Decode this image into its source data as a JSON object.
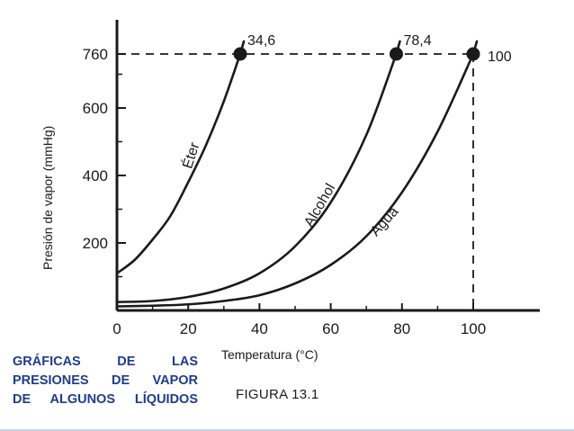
{
  "chart_data": {
    "type": "line",
    "ylabel": "Presión de vapor (mmHg)",
    "xlabel": "Temperatura (°C)",
    "figure_label": "FIGURA 13.1",
    "xlim": [
      0,
      110
    ],
    "ylim": [
      0,
      800
    ],
    "x_ticks": [
      0,
      20,
      40,
      60,
      80,
      100
    ],
    "y_ticks": [
      200,
      400,
      600,
      760
    ],
    "reference_pressure": 760,
    "series": [
      {
        "name": "Éter",
        "boiling_point": 34.6,
        "boiling_label": "34,6",
        "x": [
          0,
          5,
          10,
          15,
          20,
          25,
          30,
          34.6
        ],
        "y": [
          110,
          150,
          210,
          280,
          380,
          490,
          620,
          760
        ]
      },
      {
        "name": "Alcohol",
        "boiling_point": 78.4,
        "boiling_label": "78,4",
        "x": [
          0,
          10,
          20,
          30,
          40,
          50,
          60,
          70,
          78.4
        ],
        "y": [
          25,
          28,
          40,
          65,
          110,
          190,
          320,
          520,
          760
        ]
      },
      {
        "name": "Agua",
        "boiling_point": 100,
        "boiling_label": "100",
        "x": [
          0,
          10,
          20,
          30,
          40,
          50,
          60,
          70,
          80,
          90,
          100
        ],
        "y": [
          12,
          14,
          18,
          28,
          45,
          80,
          135,
          220,
          350,
          530,
          760
        ]
      }
    ]
  },
  "caption": {
    "lines": [
      "GRÁFICAS DE LAS",
      "PRESIONES DE VAPOR",
      "DE ALGUNOS LÍQUIDOS"
    ]
  },
  "colors": {
    "ink": "#1a1a1a",
    "caption": "#1f3c8a"
  }
}
